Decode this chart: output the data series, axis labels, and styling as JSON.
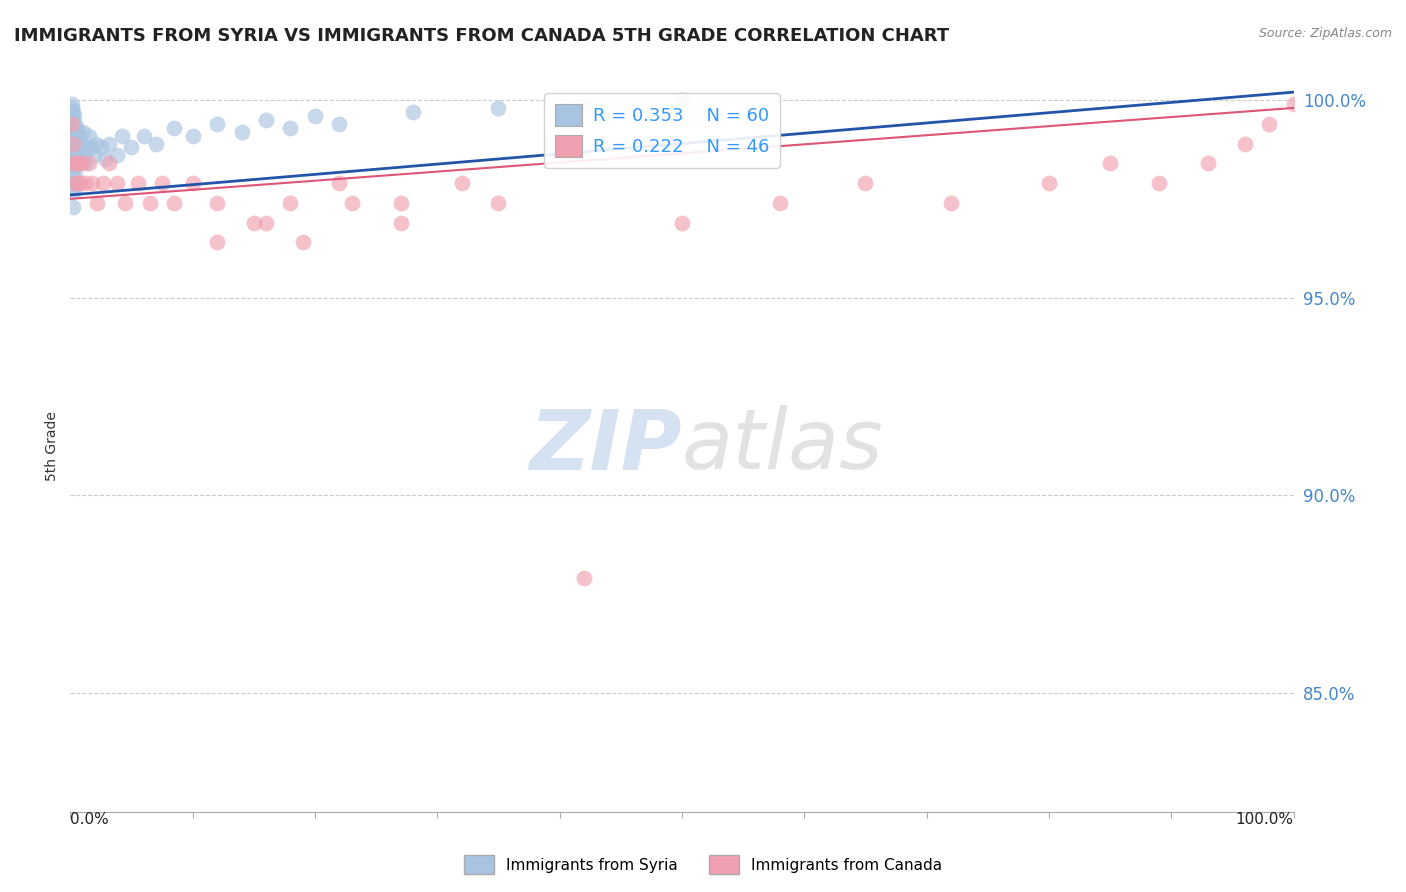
{
  "title": "IMMIGRANTS FROM SYRIA VS IMMIGRANTS FROM CANADA 5TH GRADE CORRELATION CHART",
  "source": "Source: ZipAtlas.com",
  "ylabel": "5th Grade",
  "watermark_zip": "ZIP",
  "watermark_atlas": "atlas",
  "legend": {
    "syria": {
      "R": 0.353,
      "N": 60,
      "color": "#a8c4e0",
      "line_color": "#2255aa"
    },
    "canada": {
      "R": 0.222,
      "N": 46,
      "color": "#f0a0b0",
      "line_color": "#dd5577"
    }
  },
  "syria_x": [
    0.0005,
    0.0005,
    0.001,
    0.001,
    0.001,
    0.001,
    0.001,
    0.001,
    0.001,
    0.001,
    0.0015,
    0.0015,
    0.0015,
    0.002,
    0.002,
    0.002,
    0.002,
    0.002,
    0.003,
    0.003,
    0.003,
    0.003,
    0.004,
    0.004,
    0.004,
    0.005,
    0.005,
    0.006,
    0.006,
    0.007,
    0.008,
    0.009,
    0.01,
    0.011,
    0.012,
    0.013,
    0.015,
    0.017,
    0.019,
    0.021,
    0.025,
    0.028,
    0.032,
    0.038,
    0.042,
    0.05,
    0.06,
    0.07,
    0.085,
    0.1,
    0.12,
    0.14,
    0.16,
    0.18,
    0.2,
    0.22,
    0.28,
    0.35,
    0.42,
    0.5
  ],
  "syria_y": [
    0.997,
    0.994,
    0.999,
    0.996,
    0.993,
    0.99,
    0.987,
    0.984,
    0.981,
    0.978,
    0.998,
    0.992,
    0.986,
    0.997,
    0.991,
    0.985,
    0.979,
    0.973,
    0.996,
    0.989,
    0.983,
    0.977,
    0.994,
    0.987,
    0.981,
    0.993,
    0.986,
    0.992,
    0.985,
    0.991,
    0.988,
    0.985,
    0.992,
    0.988,
    0.984,
    0.987,
    0.991,
    0.988,
    0.986,
    0.989,
    0.988,
    0.985,
    0.989,
    0.986,
    0.991,
    0.988,
    0.991,
    0.989,
    0.993,
    0.991,
    0.994,
    0.992,
    0.995,
    0.993,
    0.996,
    0.994,
    0.997,
    0.998,
    0.999,
    1.0
  ],
  "canada_x": [
    0.001,
    0.002,
    0.003,
    0.004,
    0.005,
    0.006,
    0.007,
    0.008,
    0.009,
    0.012,
    0.015,
    0.018,
    0.022,
    0.027,
    0.032,
    0.038,
    0.045,
    0.055,
    0.065,
    0.075,
    0.085,
    0.1,
    0.12,
    0.15,
    0.18,
    0.22,
    0.27,
    0.32,
    0.12,
    0.16,
    0.19,
    0.23,
    0.27,
    0.35,
    0.42,
    0.5,
    0.58,
    0.65,
    0.72,
    0.8,
    0.85,
    0.89,
    0.93,
    0.96,
    0.98,
    1.0
  ],
  "canada_y": [
    0.994,
    0.989,
    0.984,
    0.979,
    0.984,
    0.979,
    0.984,
    0.979,
    0.984,
    0.979,
    0.984,
    0.979,
    0.974,
    0.979,
    0.984,
    0.979,
    0.974,
    0.979,
    0.974,
    0.979,
    0.974,
    0.979,
    0.974,
    0.969,
    0.974,
    0.979,
    0.974,
    0.979,
    0.964,
    0.969,
    0.964,
    0.974,
    0.969,
    0.974,
    0.879,
    0.969,
    0.974,
    0.979,
    0.974,
    0.979,
    0.984,
    0.979,
    0.984,
    0.989,
    0.994,
    0.999
  ],
  "syria_trend": [
    0.0,
    1.0
  ],
  "syria_trend_y": [
    0.976,
    1.002
  ],
  "canada_trend": [
    0.0,
    1.0
  ],
  "canada_trend_y": [
    0.975,
    0.998
  ],
  "ylim": [
    0.82,
    1.005
  ],
  "xlim": [
    0.0,
    1.0
  ],
  "yticks": [
    0.85,
    0.9,
    0.95,
    1.0
  ],
  "ytick_labels": [
    "85.0%",
    "90.0%",
    "95.0%",
    "100.0%"
  ],
  "xtick_positions": [
    0.0,
    0.1,
    0.2,
    0.3,
    0.4,
    0.5,
    0.6,
    0.7,
    0.8,
    0.9,
    1.0
  ],
  "background_color": "#ffffff",
  "grid_color": "#cccccc",
  "title_fontsize": 13,
  "axis_label_fontsize": 10
}
